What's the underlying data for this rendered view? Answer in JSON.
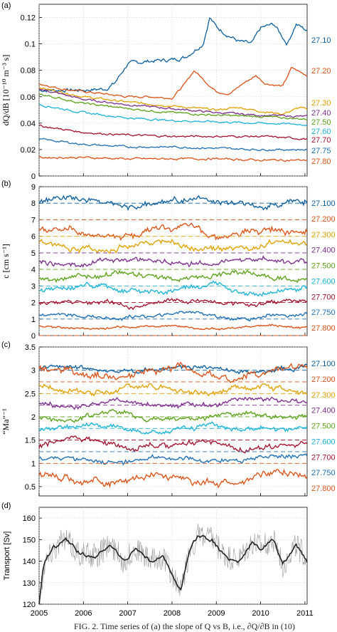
{
  "colors": {
    "27.10": "#0e5f9e",
    "27.20": "#d95319",
    "27.30": "#e0a100",
    "27.40": "#7e2f8e",
    "27.50": "#5ba21a",
    "27.60": "#1eb2d8",
    "27.70": "#a2142f",
    "27.75": "#1f6fb2",
    "27.80": "#d95319",
    "transport_raw": "#999999",
    "transport_smooth": "#222222"
  },
  "caption": "FIG. 2. Time series of (a) the slope of Q vs B, i.e., ∂Q/∂B in (10)",
  "chart_data": [
    {
      "panel": "(a)",
      "type": "line",
      "ylabel": "dQ/dB  [10⁻¹⁰ m⁻³ s]",
      "ylim": [
        0,
        0.13
      ],
      "yticks": [
        "0",
        "0.02",
        "0.04",
        "0.06",
        "0.08",
        "0.1",
        "0.12"
      ],
      "grid": true,
      "x_range": [
        2005,
        2011.05
      ],
      "series": [
        {
          "name": "27.10",
          "x": [
            2005,
            2005.5,
            2006,
            2006.5,
            2006.7,
            2007,
            2007.5,
            2008,
            2008.3,
            2008.7,
            2008.85,
            2009,
            2009.2,
            2009.5,
            2009.8,
            2010,
            2010.3,
            2010.6,
            2010.8,
            2011.05
          ],
          "y": [
            0.065,
            0.065,
            0.065,
            0.066,
            0.07,
            0.085,
            0.087,
            0.088,
            0.09,
            0.1,
            0.12,
            0.113,
            0.108,
            0.102,
            0.1,
            0.112,
            0.115,
            0.1,
            0.115,
            0.11
          ]
        },
        {
          "name": "27.20",
          "x": [
            2005,
            2005.5,
            2006,
            2006.5,
            2007,
            2007.5,
            2008,
            2008.3,
            2008.5,
            2008.8,
            2009,
            2009.3,
            2009.6,
            2009.9,
            2010.1,
            2010.5,
            2010.7,
            2011.05
          ],
          "y": [
            0.07,
            0.066,
            0.064,
            0.062,
            0.06,
            0.06,
            0.059,
            0.07,
            0.08,
            0.07,
            0.064,
            0.062,
            0.07,
            0.076,
            0.07,
            0.068,
            0.082,
            0.076
          ]
        },
        {
          "name": "27.30",
          "x": [
            2005,
            2006,
            2007,
            2008,
            2009,
            2009.5,
            2010,
            2010.5,
            2010.9,
            2011.05
          ],
          "y": [
            0.067,
            0.06,
            0.056,
            0.053,
            0.05,
            0.052,
            0.049,
            0.047,
            0.052,
            0.05
          ]
        },
        {
          "name": "27.40",
          "x": [
            2005,
            2006,
            2007,
            2008,
            2009,
            2010,
            2011.05
          ],
          "y": [
            0.066,
            0.058,
            0.054,
            0.051,
            0.048,
            0.046,
            0.045
          ]
        },
        {
          "name": "27.50",
          "x": [
            2005,
            2006,
            2007,
            2008,
            2009,
            2010,
            2011.05
          ],
          "y": [
            0.062,
            0.055,
            0.051,
            0.048,
            0.046,
            0.045,
            0.043
          ]
        },
        {
          "name": "27.60",
          "x": [
            2005,
            2006,
            2007,
            2008,
            2009,
            2010,
            2011.05
          ],
          "y": [
            0.054,
            0.048,
            0.044,
            0.042,
            0.041,
            0.04,
            0.039
          ]
        },
        {
          "name": "27.70",
          "x": [
            2005,
            2006,
            2007,
            2008,
            2009,
            2010,
            2011.05
          ],
          "y": [
            0.038,
            0.033,
            0.031,
            0.03,
            0.03,
            0.03,
            0.028
          ]
        },
        {
          "name": "27.75",
          "x": [
            2005,
            2006,
            2007,
            2008,
            2009,
            2010,
            2011.05
          ],
          "y": [
            0.028,
            0.024,
            0.022,
            0.022,
            0.021,
            0.02,
            0.02
          ]
        },
        {
          "name": "27.80",
          "x": [
            2005,
            2006,
            2007,
            2008,
            2009,
            2010,
            2011.05
          ],
          "y": [
            0.014,
            0.014,
            0.013,
            0.013,
            0.013,
            0.012,
            0.012
          ]
        }
      ],
      "legend_labels": [
        "27.10",
        "27.20",
        "27.30",
        "27.40",
        "27.50",
        "27.60",
        "27.70",
        "27.75",
        "27.80"
      ]
    },
    {
      "panel": "(b)",
      "type": "line",
      "ylabel": "c  [cm s⁻¹]",
      "ylim": [
        0,
        9
      ],
      "yticks": [
        "0",
        "1",
        "2",
        "3",
        "4",
        "5",
        "6",
        "7",
        "8",
        "9"
      ],
      "grid": true,
      "x_range": [
        2005,
        2011.05
      ],
      "series": [
        {
          "name": "27.10",
          "mean": 8.0,
          "amp": 0.35,
          "ref": 8.0
        },
        {
          "name": "27.20",
          "mean": 6.3,
          "amp": 0.4,
          "ref": 7.0
        },
        {
          "name": "27.30",
          "mean": 5.4,
          "amp": 0.35,
          "ref": 6.0
        },
        {
          "name": "27.40",
          "mean": 4.5,
          "amp": 0.3,
          "ref": 5.0
        },
        {
          "name": "27.50",
          "mean": 3.6,
          "amp": 0.3,
          "ref": 4.0
        },
        {
          "name": "27.60",
          "mean": 2.8,
          "amp": 0.3,
          "ref": 3.0
        },
        {
          "name": "27.70",
          "mean": 2.0,
          "amp": 0.25,
          "ref": 2.0
        },
        {
          "name": "27.75",
          "mean": 1.2,
          "amp": 0.2,
          "ref": 1.0
        },
        {
          "name": "27.80",
          "mean": 0.5,
          "amp": 0.12,
          "ref": 0.0
        }
      ],
      "legend_labels": [
        "27.100",
        "27.200",
        "27.300",
        "27.400",
        "27.500",
        "27.600",
        "27.700",
        "27.750",
        "27.800"
      ]
    },
    {
      "panel": "(c)",
      "type": "line",
      "ylabel": "“Ma”⁻¹",
      "ylim": [
        0.3,
        3.5
      ],
      "yticks": [
        "0.5",
        "1",
        "1.5",
        "2",
        "2.5",
        "3",
        "3.5"
      ],
      "grid": true,
      "x_range": [
        2005,
        2011.05
      ],
      "series": [
        {
          "name": "27.10",
          "mean": 3.02,
          "amp": 0.1,
          "ref": 3.0
        },
        {
          "name": "27.20",
          "mean": 2.95,
          "amp": 0.15,
          "ref": 2.75
        },
        {
          "name": "27.30",
          "mean": 2.6,
          "amp": 0.12,
          "ref": 2.5
        },
        {
          "name": "27.40",
          "mean": 2.3,
          "amp": 0.1,
          "ref": 2.25
        },
        {
          "name": "27.50",
          "mean": 2.02,
          "amp": 0.1,
          "ref": 2.0
        },
        {
          "name": "27.60",
          "mean": 1.75,
          "amp": 0.1,
          "ref": 1.75
        },
        {
          "name": "27.70",
          "mean": 1.4,
          "amp": 0.12,
          "ref": 1.5
        },
        {
          "name": "27.75",
          "mean": 1.08,
          "amp": 0.1,
          "ref": 1.25
        },
        {
          "name": "27.80",
          "mean": 0.68,
          "amp": 0.15,
          "ref": 1.0
        }
      ],
      "legend_labels": [
        "27.100",
        "27.200",
        "27.300",
        "27.400",
        "27.500",
        "27.600",
        "27.700",
        "27.750",
        "27.800"
      ]
    },
    {
      "panel": "(d)",
      "type": "line",
      "ylabel": "Transport [Sv]",
      "ylim": [
        120,
        165
      ],
      "yticks": [
        "120",
        "130",
        "140",
        "150",
        "160"
      ],
      "grid": true,
      "x_range": [
        2005,
        2011.05
      ],
      "xticks": [
        "2005",
        "2006",
        "2007",
        "2008",
        "2009",
        "2010",
        "2011"
      ],
      "series": [
        {
          "name": "",
          "x": [
            2005,
            2005.1,
            2005.3,
            2005.6,
            2005.9,
            2006.3,
            2006.6,
            2006.9,
            2007.2,
            2007.5,
            2007.8,
            2008.0,
            2008.2,
            2008.4,
            2008.6,
            2008.9,
            2009.2,
            2009.5,
            2009.8,
            2010.0,
            2010.3,
            2010.5,
            2010.8,
            2011.05
          ],
          "y": [
            120,
            138,
            146,
            150,
            144,
            142,
            148,
            140,
            146,
            140,
            142,
            134,
            126,
            145,
            152,
            150,
            142,
            140,
            148,
            146,
            150,
            138,
            148,
            140
          ]
        }
      ]
    }
  ]
}
